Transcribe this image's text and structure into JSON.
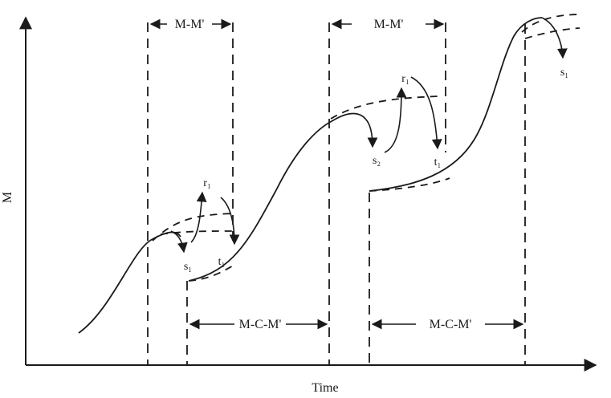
{
  "axes": {
    "y_label": "M",
    "x_label": "Time"
  },
  "brackets": {
    "mm_left": "M-M'",
    "mm_right": "M-M'",
    "mcm_left": "M-C-M'",
    "mcm_right": "M-C-M'"
  },
  "points": {
    "s_left": "s₁",
    "r_left": "r₁",
    "t_left": "t₁",
    "s_middle": "s₂",
    "r_middle": "r₁",
    "t_middle": "t₁",
    "s_right": "s₁"
  }
}
